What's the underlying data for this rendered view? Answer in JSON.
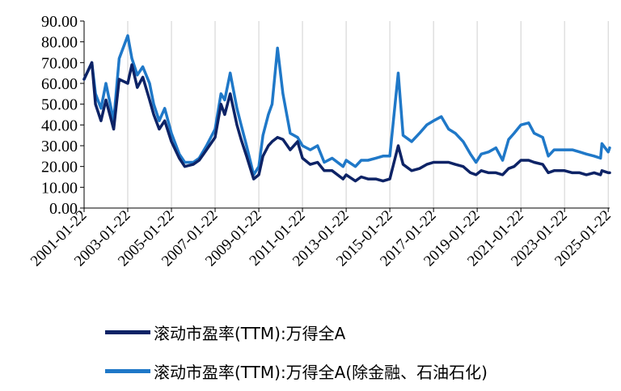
{
  "chart_data": {
    "type": "line",
    "title": "",
    "xlabel": "",
    "ylabel": "",
    "ylim": [
      0,
      90
    ],
    "yticks": [
      "0.00",
      "10.00",
      "20.00",
      "30.00",
      "40.00",
      "50.00",
      "60.00",
      "70.00",
      "80.00",
      "90.00"
    ],
    "xlim": [
      "2001-01-22",
      "2025-02-15"
    ],
    "xticks": [
      "2001-01-22",
      "2003-01-22",
      "2005-01-22",
      "2007-01-22",
      "2009-01-22",
      "2011-01-22",
      "2013-01-22",
      "2015-01-22",
      "2017-01-22",
      "2019-01-22",
      "2021-01-22",
      "2023-01-22",
      "2025-01-22"
    ],
    "grid": "vertical",
    "legend_position": "bottom",
    "series": [
      {
        "name": "滚动市盈率(TTM):万得全A",
        "color": "#0d2366",
        "x": [
          "2001-01-22",
          "2001-06-01",
          "2001-08-01",
          "2001-11-01",
          "2002-01-22",
          "2002-06-01",
          "2002-09-01",
          "2003-01-22",
          "2003-04-01",
          "2003-07-01",
          "2003-10-01",
          "2004-01-22",
          "2004-04-01",
          "2004-07-01",
          "2004-10-01",
          "2005-01-22",
          "2005-06-01",
          "2005-09-01",
          "2006-01-22",
          "2006-05-01",
          "2006-09-01",
          "2007-01-22",
          "2007-05-01",
          "2007-07-01",
          "2007-10-01",
          "2008-01-22",
          "2008-04-01",
          "2008-07-01",
          "2008-10-28",
          "2009-01-22",
          "2009-04-01",
          "2009-07-01",
          "2009-09-01",
          "2009-12-01",
          "2010-03-01",
          "2010-07-01",
          "2010-11-01",
          "2011-01-22",
          "2011-06-01",
          "2011-10-01",
          "2012-01-22",
          "2012-06-01",
          "2012-12-01",
          "2013-01-22",
          "2013-06-25",
          "2013-10-01",
          "2014-01-22",
          "2014-06-01",
          "2014-10-01",
          "2015-01-22",
          "2015-06-12",
          "2015-09-01",
          "2016-01-22",
          "2016-06-01",
          "2016-10-01",
          "2017-01-22",
          "2017-06-01",
          "2017-10-01",
          "2018-01-22",
          "2018-06-01",
          "2018-10-01",
          "2019-01-03",
          "2019-04-01",
          "2019-08-01",
          "2019-12-01",
          "2020-03-23",
          "2020-07-01",
          "2020-10-01",
          "2021-01-22",
          "2021-06-01",
          "2021-09-01",
          "2022-01-22",
          "2022-04-26",
          "2022-08-01",
          "2023-01-22",
          "2023-06-01",
          "2023-10-01",
          "2024-01-22",
          "2024-06-01",
          "2024-09-15",
          "2024-10-08",
          "2025-01-22",
          "2025-02-15"
        ],
        "values": [
          62,
          70,
          50,
          42,
          52,
          38,
          62,
          60,
          69,
          58,
          63,
          52,
          45,
          38,
          42,
          32,
          24,
          20,
          21,
          23,
          28,
          34,
          50,
          45,
          55,
          40,
          33,
          25,
          14,
          16,
          25,
          30,
          32,
          34,
          33,
          28,
          32,
          24,
          21,
          22,
          18,
          18,
          14,
          16,
          13,
          15,
          14,
          14,
          13,
          14,
          30,
          21,
          18,
          19,
          21,
          22,
          22,
          22,
          21,
          20,
          17,
          16,
          18,
          17,
          17,
          16,
          19,
          20,
          23,
          23,
          22,
          21,
          17,
          18,
          18,
          17,
          17,
          16,
          17,
          16,
          18,
          17,
          17
        ]
      },
      {
        "name": "滚动市盈率(TTM):万得全A(除金融、石油石化)",
        "color": "#1f78c8",
        "x": [
          "2001-01-22",
          "2001-06-01",
          "2001-08-01",
          "2001-11-01",
          "2002-01-22",
          "2002-06-01",
          "2002-09-01",
          "2003-01-22",
          "2003-04-01",
          "2003-07-01",
          "2003-10-01",
          "2004-01-22",
          "2004-04-01",
          "2004-07-01",
          "2004-10-01",
          "2005-01-22",
          "2005-06-01",
          "2005-09-01",
          "2006-01-22",
          "2006-05-01",
          "2006-09-01",
          "2007-01-22",
          "2007-05-01",
          "2007-07-01",
          "2007-10-01",
          "2008-01-22",
          "2008-04-01",
          "2008-07-01",
          "2008-10-28",
          "2009-01-22",
          "2009-04-01",
          "2009-07-01",
          "2009-09-01",
          "2009-12-01",
          "2010-03-01",
          "2010-07-01",
          "2010-11-01",
          "2011-01-22",
          "2011-06-01",
          "2011-10-01",
          "2012-01-22",
          "2012-06-01",
          "2012-12-01",
          "2013-01-22",
          "2013-06-25",
          "2013-10-01",
          "2014-01-22",
          "2014-06-01",
          "2014-10-01",
          "2015-01-22",
          "2015-06-12",
          "2015-09-01",
          "2016-01-22",
          "2016-06-01",
          "2016-10-01",
          "2017-01-22",
          "2017-06-01",
          "2017-10-01",
          "2018-01-22",
          "2018-06-01",
          "2018-10-01",
          "2019-01-03",
          "2019-04-01",
          "2019-08-01",
          "2019-12-01",
          "2020-03-23",
          "2020-07-01",
          "2020-10-01",
          "2021-01-22",
          "2021-06-01",
          "2021-09-01",
          "2022-01-22",
          "2022-04-26",
          "2022-08-01",
          "2023-01-22",
          "2023-06-01",
          "2023-10-01",
          "2024-01-22",
          "2024-06-01",
          "2024-09-15",
          "2024-10-08",
          "2025-01-22",
          "2025-02-15"
        ],
        "values": [
          62,
          70,
          55,
          48,
          60,
          42,
          72,
          83,
          72,
          64,
          68,
          60,
          50,
          42,
          48,
          36,
          26,
          22,
          22,
          24,
          30,
          38,
          55,
          52,
          65,
          48,
          40,
          30,
          16,
          20,
          35,
          45,
          50,
          77,
          55,
          36,
          34,
          30,
          28,
          30,
          22,
          24,
          20,
          23,
          20,
          23,
          23,
          24,
          25,
          25,
          65,
          35,
          32,
          36,
          40,
          42,
          44,
          38,
          36,
          32,
          26,
          22,
          26,
          27,
          29,
          23,
          33,
          36,
          40,
          41,
          36,
          34,
          25,
          28,
          28,
          28,
          27,
          26,
          25,
          24,
          31,
          27,
          29
        ]
      }
    ]
  }
}
